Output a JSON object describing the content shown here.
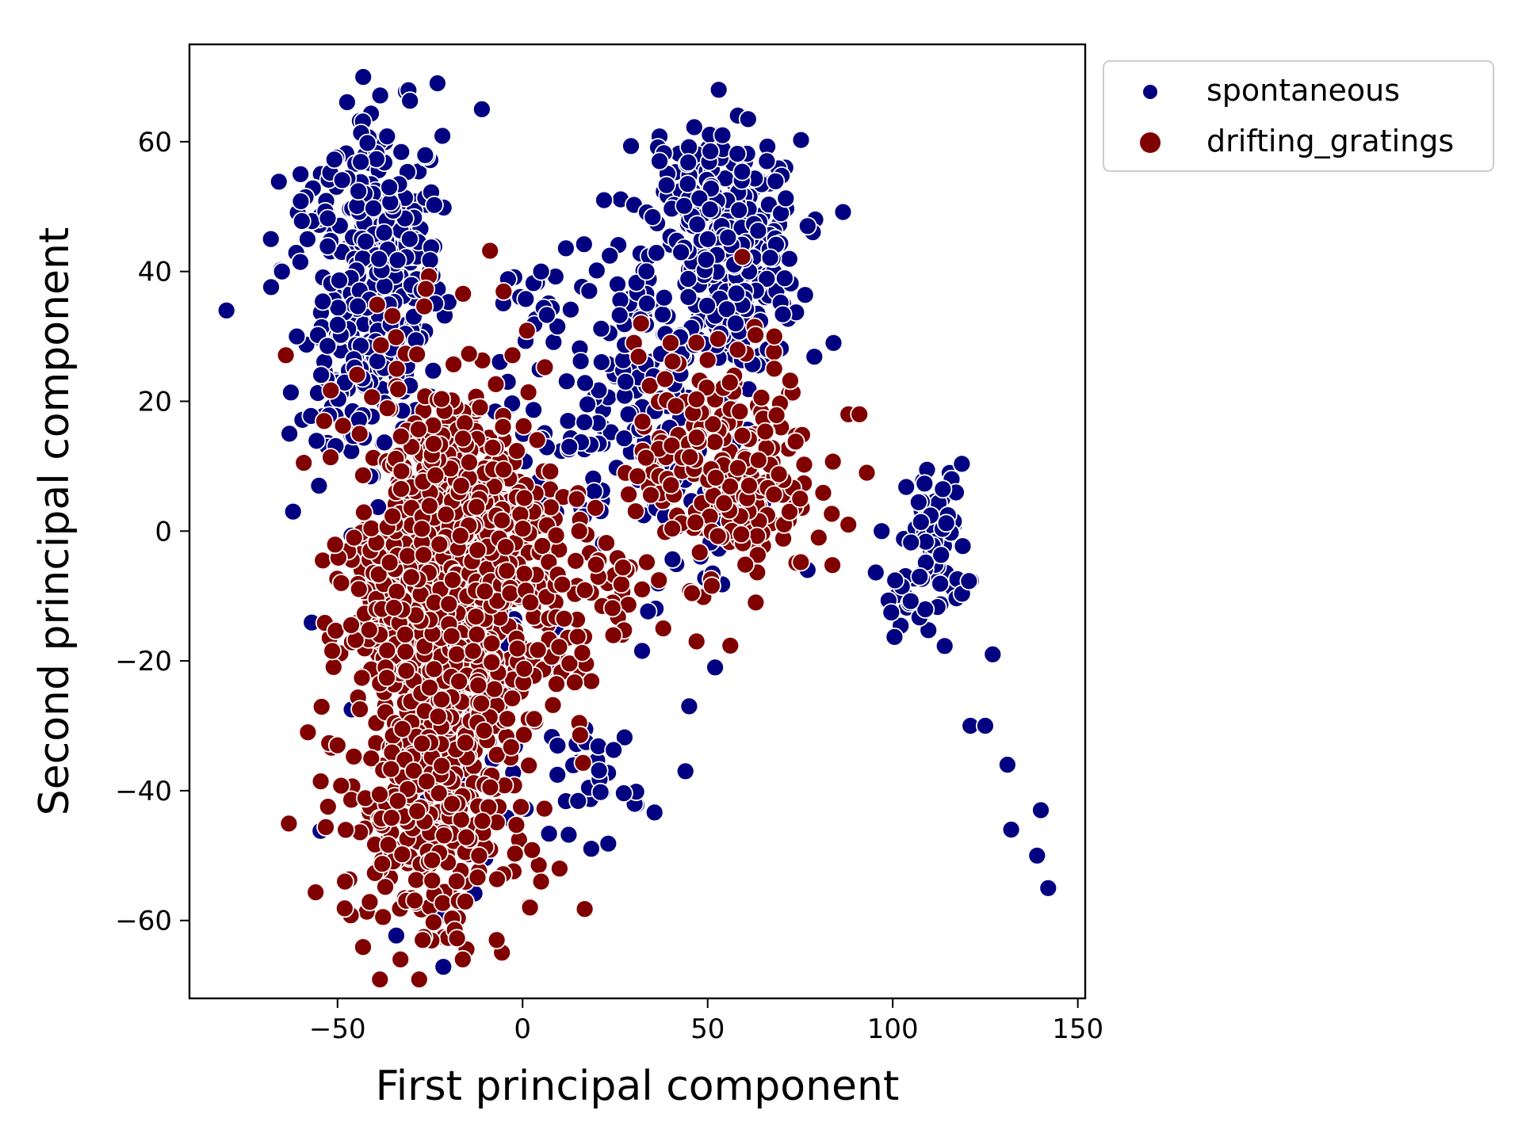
{
  "chart_data": {
    "type": "scatter",
    "title": "",
    "xlabel": "First principal component",
    "ylabel": "Second principal component",
    "xlim": [
      -90,
      152
    ],
    "ylim": [
      -72,
      75
    ],
    "xticks": [
      -50,
      0,
      50,
      100,
      150
    ],
    "yticks": [
      -60,
      -40,
      -20,
      0,
      20,
      40,
      60
    ],
    "grid": false,
    "legend": {
      "placement": "outside-top-right"
    },
    "series": [
      {
        "name": "spontaneous",
        "color": "#000080",
        "clusters": [
          {
            "cx": -38,
            "cy": 40,
            "sx": 8,
            "sy": 12,
            "n": 300
          },
          {
            "cx": -45,
            "cy": 52,
            "sx": 5,
            "sy": 4,
            "n": 20
          },
          {
            "cx": -58,
            "cy": 45,
            "sx": 5,
            "sy": 4,
            "n": 15
          },
          {
            "cx": -50,
            "cy": 22,
            "sx": 6,
            "sy": 8,
            "n": 40
          },
          {
            "cx": 55,
            "cy": 42,
            "sx": 10,
            "sy": 9,
            "n": 320
          },
          {
            "cx": 45,
            "cy": 55,
            "sx": 6,
            "sy": 4,
            "n": 30
          },
          {
            "cx": 30,
            "cy": 25,
            "sx": 8,
            "sy": 10,
            "n": 70
          },
          {
            "cx": 10,
            "cy": 15,
            "sx": 8,
            "sy": 8,
            "n": 50
          },
          {
            "cx": 5,
            "cy": 35,
            "sx": 8,
            "sy": 4,
            "n": 20
          },
          {
            "cx": 112,
            "cy": -2,
            "sx": 4,
            "sy": 6,
            "n": 70
          },
          {
            "cx": 103,
            "cy": -10,
            "sx": 4,
            "sy": 3,
            "n": 15
          },
          {
            "cx": -15,
            "cy": -20,
            "sx": 14,
            "sy": 15,
            "n": 120
          },
          {
            "cx": 20,
            "cy": -38,
            "sx": 6,
            "sy": 5,
            "n": 30
          },
          {
            "cx": 45,
            "cy": 5,
            "sx": 10,
            "sy": 8,
            "n": 60
          }
        ],
        "points": [
          [
            -80,
            34
          ],
          [
            -23,
            69
          ],
          [
            -11,
            65
          ],
          [
            53,
            68
          ],
          [
            54,
            61
          ],
          [
            -61,
            30
          ],
          [
            -62,
            3
          ],
          [
            97,
            0
          ],
          [
            127,
            -19
          ],
          [
            121,
            -30
          ],
          [
            125,
            -30
          ],
          [
            131,
            -36
          ],
          [
            132,
            -46
          ],
          [
            140,
            -43
          ],
          [
            139,
            -50
          ],
          [
            142,
            -55
          ],
          [
            52,
            -21
          ],
          [
            44,
            -37
          ],
          [
            45,
            -27
          ],
          [
            77,
            -6
          ],
          [
            5,
            40
          ],
          [
            18,
            37
          ],
          [
            22,
            51
          ],
          [
            37,
            57
          ],
          [
            66,
            57
          ],
          [
            77,
            47
          ],
          [
            84,
            29
          ],
          [
            -4,
            23
          ],
          [
            -63,
            15
          ],
          [
            -55,
            7
          ],
          [
            -60,
            55
          ],
          [
            -68,
            45
          ],
          [
            -65,
            40
          ]
        ]
      },
      {
        "name": "drifting_gratings",
        "color": "#800000",
        "clusters": [
          {
            "cx": -20,
            "cy": -15,
            "sx": 13,
            "sy": 20,
            "n": 750
          },
          {
            "cx": -28,
            "cy": -45,
            "sx": 10,
            "sy": 8,
            "n": 150
          },
          {
            "cx": -40,
            "cy": -10,
            "sx": 6,
            "sy": 6,
            "n": 60
          },
          {
            "cx": -10,
            "cy": 0,
            "sx": 10,
            "sy": 8,
            "n": 120
          },
          {
            "cx": 55,
            "cy": 10,
            "sx": 12,
            "sy": 9,
            "n": 230
          },
          {
            "cx": 20,
            "cy": -8,
            "sx": 10,
            "sy": 6,
            "n": 50
          },
          {
            "cx": -25,
            "cy": 10,
            "sx": 8,
            "sy": 7,
            "n": 80
          }
        ],
        "points": [
          [
            -33,
            -66
          ],
          [
            -7,
            -63
          ],
          [
            -27,
            -63
          ],
          [
            -58,
            -31
          ],
          [
            -50,
            -33
          ],
          [
            -48,
            -54
          ],
          [
            2,
            -58
          ],
          [
            5,
            -54
          ],
          [
            10,
            -52
          ],
          [
            47,
            -17
          ],
          [
            38,
            -15
          ],
          [
            63,
            -11
          ],
          [
            88,
            18
          ],
          [
            91,
            18
          ],
          [
            93,
            9
          ],
          [
            88,
            1
          ],
          [
            80,
            -1
          ],
          [
            32,
            32
          ],
          [
            -34,
            25
          ],
          [
            40,
            29
          ],
          [
            68,
            30
          ]
        ]
      }
    ]
  }
}
